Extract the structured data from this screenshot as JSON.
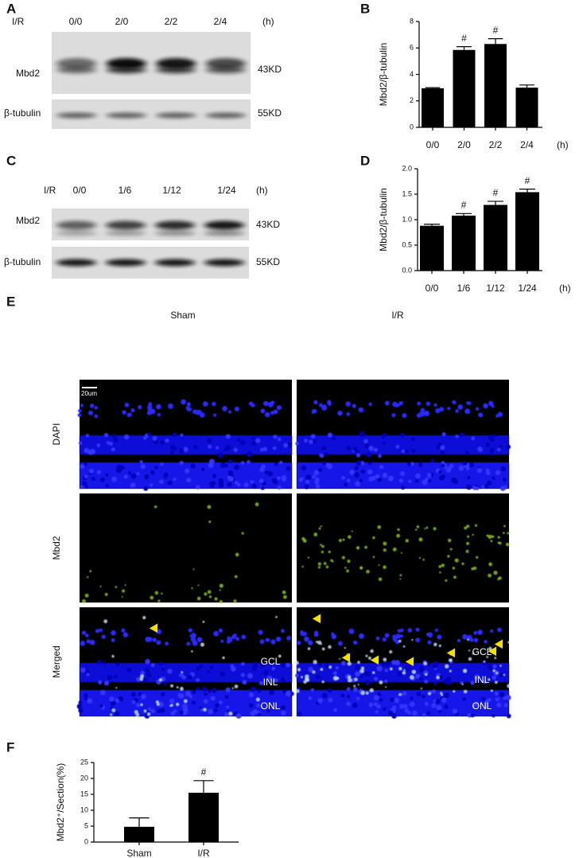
{
  "blots": [
    {
      "panel_label": "A",
      "treatment": "I/R",
      "lanes": [
        "0/0",
        "2/0",
        "2/2",
        "2/4"
      ],
      "unit": "(h)",
      "rows": [
        {
          "name": "Mbd2",
          "size": "43KD"
        },
        {
          "name": "β-tubulin",
          "size": "55KD"
        }
      ]
    },
    {
      "panel_label": "C",
      "treatment": "I/R",
      "lanes": [
        "0/0",
        "1/6",
        "1/12",
        "1/24"
      ],
      "unit": "(h)",
      "rows": [
        {
          "name": "Mbd2",
          "size": "43KD"
        },
        {
          "name": "β-tubulin",
          "size": "55KD"
        }
      ]
    }
  ],
  "imaging": {
    "panel_label": "E",
    "columns": [
      "Sham",
      "I/R"
    ],
    "rows": [
      "DAPI",
      "Mbd2",
      "Merged"
    ],
    "scale_bar": "20um",
    "layers": [
      "GCL",
      "INL",
      "ONL"
    ]
  },
  "chart_data": [
    {
      "type": "bar",
      "panel_label": "B",
      "y_label": "Mbd2/β-tubulin",
      "x_label": "(h)",
      "categories": [
        "0/0",
        "2/0",
        "2/2",
        "2/4"
      ],
      "values": [
        2.95,
        5.85,
        6.3,
        3.0
      ],
      "errors": [
        0.05,
        0.25,
        0.4,
        0.2
      ],
      "color": "#000000",
      "ylim": [
        0,
        8
      ],
      "yticks": [
        0,
        2,
        4,
        6,
        8
      ],
      "annotations": [
        {
          "x": "2/0",
          "text": "#"
        },
        {
          "x": "2/2",
          "text": "#"
        }
      ]
    },
    {
      "type": "bar",
      "panel_label": "D",
      "y_label": "Mbd2/β-tubulin",
      "x_label": "(h)",
      "categories": [
        "0/0",
        "1/6",
        "1/12",
        "1/24"
      ],
      "values": [
        0.88,
        1.08,
        1.29,
        1.54
      ],
      "errors": [
        0.03,
        0.04,
        0.07,
        0.06
      ],
      "color": "#000000",
      "ylim": [
        0,
        2.0
      ],
      "yticks": [
        {
          "value": 0,
          "label": "0.0"
        },
        0.5,
        {
          "value": 1,
          "label": "1.0"
        },
        1.5,
        {
          "value": 2,
          "label": "2.0"
        }
      ],
      "annotations": [
        {
          "x": "1/6",
          "text": "#"
        },
        {
          "x": "1/12",
          "text": "#"
        },
        {
          "x": "1/24",
          "text": "#"
        }
      ]
    },
    {
      "type": "bar",
      "panel_label": "F",
      "y_label": "Mbd2⁺/Section(%)",
      "categories": [
        "Sham",
        "I/R"
      ],
      "values": [
        4.8,
        15.5
      ],
      "errors": [
        2.8,
        3.8
      ],
      "color": "#000000",
      "ylim": [
        0,
        25
      ],
      "yticks": [
        0,
        5,
        10,
        15,
        20,
        25
      ],
      "annotations": [
        {
          "x": "I/R",
          "text": "#"
        }
      ]
    }
  ]
}
